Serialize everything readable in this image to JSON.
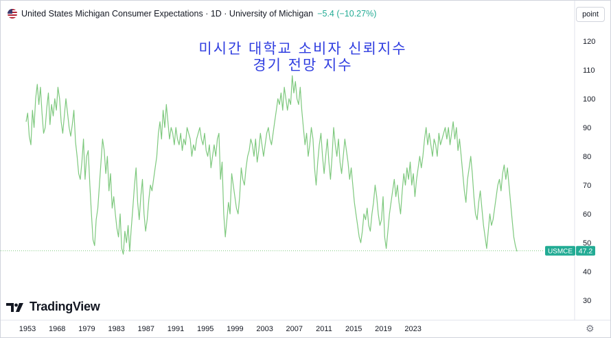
{
  "header": {
    "title": "United States Michigan Consumer Expectations · 1D · University of Michigan",
    "change": "−5.4 (−10.27%)",
    "flag_icon": "us-flag-icon",
    "point_button": "point"
  },
  "overlay_title": [
    "미시간 대학교 소비자 신뢰지수",
    "경기 전망 지수"
  ],
  "price_tag": {
    "symbol": "USMCE",
    "value": "47.2",
    "color": "#22ab94"
  },
  "logo_text": "TradingView",
  "settings_icon": "gear-icon",
  "colors": {
    "line": "#7dc87d",
    "accent": "#22ab94",
    "title_overlay": "#2f3de0"
  },
  "chart_data": {
    "type": "line",
    "title": "United States Michigan Consumer Expectations",
    "xlabel": "",
    "ylabel": "",
    "x_ticks": [
      "1953",
      "1968",
      "1979",
      "1983",
      "1987",
      "1991",
      "1995",
      "1999",
      "2003",
      "2007",
      "2011",
      "2015",
      "2019",
      "2023"
    ],
    "y_ticks": [
      "30",
      "40",
      "50",
      "60",
      "70",
      "80",
      "90",
      "100",
      "110",
      "120"
    ],
    "ylim": [
      23,
      128
    ],
    "last_value": 47.2,
    "grid": false,
    "series": [
      {
        "values": [
          92,
          95,
          87,
          84,
          96,
          90,
          100,
          105,
          98,
          104,
          95,
          88,
          90,
          97,
          102,
          91,
          98,
          94,
          100,
          96,
          104,
          100,
          92,
          88,
          94,
          100,
          95,
          90,
          87,
          91,
          96,
          85,
          80,
          74,
          72,
          78,
          86,
          72,
          80,
          82,
          70,
          60,
          51,
          49,
          58,
          62,
          70,
          78,
          86,
          82,
          74,
          80,
          68,
          74,
          62,
          66,
          60,
          55,
          52,
          60,
          48,
          46,
          54,
          50,
          56,
          47,
          55,
          62,
          70,
          76,
          64,
          58,
          66,
          72,
          60,
          54,
          58,
          65,
          70,
          68,
          72,
          76,
          80,
          88,
          92,
          86,
          96,
          90,
          98,
          92,
          86,
          90,
          88,
          84,
          90,
          86,
          84,
          88,
          82,
          86,
          84,
          90,
          88,
          86,
          80,
          84,
          82,
          86,
          88,
          90,
          86,
          84,
          88,
          82,
          80,
          84,
          76,
          80,
          84,
          80,
          86,
          88,
          72,
          78,
          60,
          52,
          58,
          64,
          60,
          74,
          70,
          66,
          62,
          60,
          66,
          76,
          72,
          70,
          76,
          80,
          82,
          86,
          84,
          80,
          86,
          78,
          82,
          88,
          84,
          80,
          84,
          88,
          90,
          86,
          84,
          88,
          92,
          96,
          100,
          98,
          102,
          96,
          104,
          100,
          96,
          100,
          98,
          108,
          102,
          106,
          100,
          98,
          104,
          96,
          90,
          84,
          88,
          80,
          84,
          90,
          86,
          76,
          70,
          78,
          84,
          88,
          80,
          74,
          80,
          86,
          78,
          72,
          80,
          90,
          84,
          80,
          86,
          78,
          74,
          80,
          86,
          82,
          78,
          72,
          76,
          70,
          64,
          60,
          56,
          52,
          50,
          54,
          60,
          58,
          62,
          56,
          54,
          60,
          64,
          70,
          66,
          60,
          56,
          58,
          66,
          52,
          48,
          54,
          60,
          64,
          68,
          72,
          66,
          70,
          64,
          60,
          68,
          74,
          70,
          76,
          72,
          78,
          70,
          74,
          66,
          72,
          76,
          80,
          76,
          80,
          86,
          90,
          84,
          88,
          84,
          80,
          86,
          84,
          80,
          88,
          84,
          86,
          88,
          90,
          86,
          90,
          84,
          88,
          92,
          86,
          90,
          82,
          86,
          80,
          74,
          68,
          64,
          72,
          76,
          80,
          74,
          66,
          60,
          58,
          64,
          68,
          62,
          56,
          52,
          48,
          54,
          60,
          56,
          58,
          62,
          66,
          70,
          72,
          68,
          74,
          77,
          72,
          76,
          70,
          64,
          58,
          52,
          49,
          47
        ]
      }
    ]
  }
}
